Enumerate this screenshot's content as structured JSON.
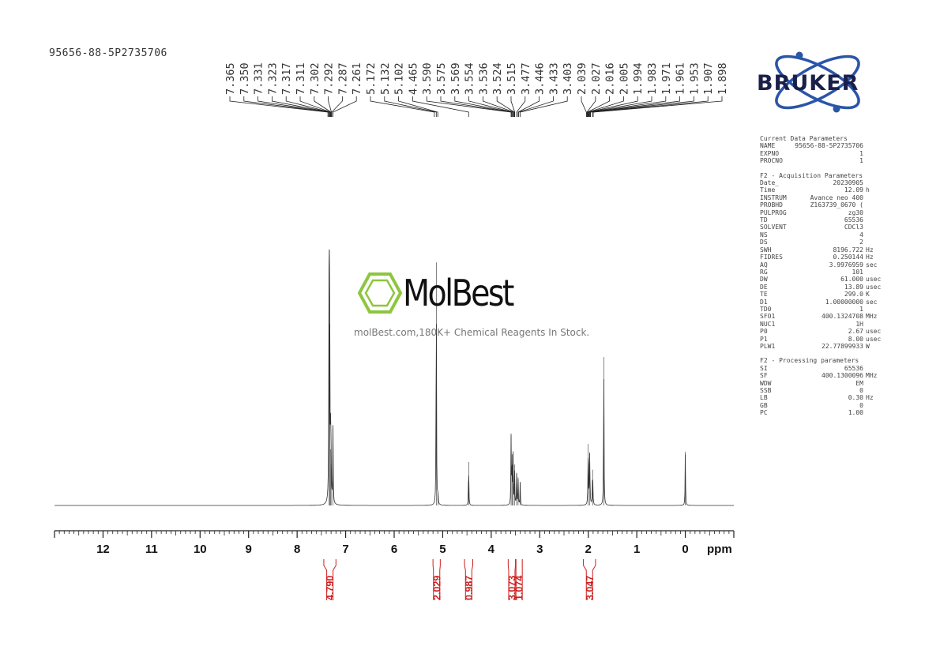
{
  "sample_name": "95656-88-5P2735706",
  "logo": {
    "bruker_text": "BRUKER",
    "icon": "atom-orbit-icon",
    "color": "#1a1f4a",
    "orbit_color": "#2a55a8"
  },
  "watermark": {
    "brand": "MolBest",
    "tagline": "molBest.com,180K+ Chemical Reagents In Stock.",
    "icon": "benzene-ring-icon",
    "icon_color": "#8dc63f"
  },
  "params": [
    {
      "title": "Current Data Parameters",
      "rows": [
        {
          "k": "NAME",
          "v": "95656-88-5P2735706",
          "u": ""
        },
        {
          "k": "EXPNO",
          "v": "1",
          "u": ""
        },
        {
          "k": "PROCNO",
          "v": "1",
          "u": ""
        }
      ]
    },
    {
      "title": "F2 - Acquisition Parameters",
      "rows": [
        {
          "k": "Date_",
          "v": "20230905",
          "u": ""
        },
        {
          "k": "Time",
          "v": "12.09",
          "u": "h"
        },
        {
          "k": "INSTRUM",
          "v": "Avance neo 400",
          "u": ""
        },
        {
          "k": "PROBHD",
          "v": "Z163739_0670 (",
          "u": ""
        },
        {
          "k": "PULPROG",
          "v": "zg30",
          "u": ""
        },
        {
          "k": "TD",
          "v": "65536",
          "u": ""
        },
        {
          "k": "SOLVENT",
          "v": "CDCl3",
          "u": ""
        },
        {
          "k": "NS",
          "v": "4",
          "u": ""
        },
        {
          "k": "DS",
          "v": "2",
          "u": ""
        },
        {
          "k": "SWH",
          "v": "8196.722",
          "u": "Hz"
        },
        {
          "k": "FIDRES",
          "v": "0.250144",
          "u": "Hz"
        },
        {
          "k": "AQ",
          "v": "3.9976959",
          "u": "sec"
        },
        {
          "k": "RG",
          "v": "101",
          "u": ""
        },
        {
          "k": "DW",
          "v": "61.000",
          "u": "usec"
        },
        {
          "k": "DE",
          "v": "13.89",
          "u": "usec"
        },
        {
          "k": "TE",
          "v": "299.0",
          "u": "K"
        },
        {
          "k": "D1",
          "v": "1.00000000",
          "u": "sec"
        },
        {
          "k": "TD0",
          "v": "1",
          "u": ""
        },
        {
          "k": "SFO1",
          "v": "400.1324708",
          "u": "MHz"
        },
        {
          "k": "NUC1",
          "v": "1H",
          "u": ""
        },
        {
          "k": "P0",
          "v": "2.67",
          "u": "usec"
        },
        {
          "k": "P1",
          "v": "8.00",
          "u": "usec"
        },
        {
          "k": "PLW1",
          "v": "22.77899933",
          "u": "W"
        }
      ]
    },
    {
      "title": "F2 - Processing parameters",
      "rows": [
        {
          "k": "SI",
          "v": "65536",
          "u": ""
        },
        {
          "k": "SF",
          "v": "400.1300096",
          "u": "MHz"
        },
        {
          "k": "WDW",
          "v": "EM",
          "u": ""
        },
        {
          "k": "SSB",
          "v": "0",
          "u": ""
        },
        {
          "k": "LB",
          "v": "0.30",
          "u": "Hz"
        },
        {
          "k": "GB",
          "v": "0",
          "u": ""
        },
        {
          "k": "PC",
          "v": "1.00",
          "u": ""
        }
      ]
    }
  ],
  "chart_data": {
    "type": "line",
    "title": "",
    "xlabel": "ppm",
    "xlim": [
      13.0,
      -1.0
    ],
    "x_reversed": true,
    "ticks_major": [
      12,
      11,
      10,
      9,
      8,
      7,
      6,
      5,
      4,
      3,
      2,
      1,
      0
    ],
    "tick_labels": [
      "12",
      "11",
      "10",
      "9",
      "8",
      "7",
      "6",
      "5",
      "4",
      "3",
      "2",
      "1",
      "0"
    ],
    "grid": false,
    "peak_labels": [
      "7.365",
      "7.350",
      "7.331",
      "7.323",
      "7.317",
      "7.311",
      "7.302",
      "7.292",
      "7.287",
      "7.261",
      "5.172",
      "5.132",
      "5.102",
      "4.465",
      "3.590",
      "3.575",
      "3.569",
      "3.554",
      "3.536",
      "3.524",
      "3.515",
      "3.477",
      "3.446",
      "3.433",
      "3.403",
      "2.039",
      "2.027",
      "2.016",
      "2.005",
      "1.994",
      "1.983",
      "1.971",
      "1.961",
      "1.953",
      "1.907",
      "1.898"
    ],
    "peaks": [
      {
        "ppm": 7.34,
        "height": 1.0,
        "width": 0.012
      },
      {
        "ppm": 7.33,
        "height": 0.71,
        "width": 0.012
      },
      {
        "ppm": 7.31,
        "height": 0.22,
        "width": 0.012
      },
      {
        "ppm": 7.3,
        "height": 0.16,
        "width": 0.012
      },
      {
        "ppm": 7.261,
        "height": 0.3,
        "width": 0.01
      },
      {
        "ppm": 5.132,
        "height": 0.95,
        "width": 0.01
      },
      {
        "ppm": 5.1,
        "height": 0.05,
        "width": 0.01
      },
      {
        "ppm": 4.465,
        "height": 0.17,
        "width": 0.01
      },
      {
        "ppm": 3.59,
        "height": 0.27,
        "width": 0.01
      },
      {
        "ppm": 3.57,
        "height": 0.2,
        "width": 0.01
      },
      {
        "ppm": 3.55,
        "height": 0.19,
        "width": 0.01
      },
      {
        "ppm": 3.52,
        "height": 0.16,
        "width": 0.01
      },
      {
        "ppm": 3.477,
        "height": 0.12,
        "width": 0.01
      },
      {
        "ppm": 3.446,
        "height": 0.11,
        "width": 0.01
      },
      {
        "ppm": 3.403,
        "height": 0.09,
        "width": 0.01
      },
      {
        "ppm": 2.0,
        "height": 0.24,
        "width": 0.012
      },
      {
        "ppm": 1.97,
        "height": 0.2,
        "width": 0.012
      },
      {
        "ppm": 1.91,
        "height": 0.14,
        "width": 0.012
      },
      {
        "ppm": 1.68,
        "height": 0.58,
        "width": 0.01
      },
      {
        "ppm": 0.0,
        "height": 0.21,
        "width": 0.01
      }
    ],
    "integrals": [
      {
        "value": "4.790",
        "from": 7.45,
        "to": 7.2
      },
      {
        "value": "2.029",
        "from": 5.2,
        "to": 5.05
      },
      {
        "value": "0.987",
        "from": 4.55,
        "to": 4.38
      },
      {
        "value": "3.073",
        "from": 3.65,
        "to": 3.5
      },
      {
        "value": "1.074",
        "from": 3.49,
        "to": 3.36
      },
      {
        "value": "3.047",
        "from": 2.1,
        "to": 1.85
      }
    ],
    "integral_color": "#cc1f1f"
  }
}
